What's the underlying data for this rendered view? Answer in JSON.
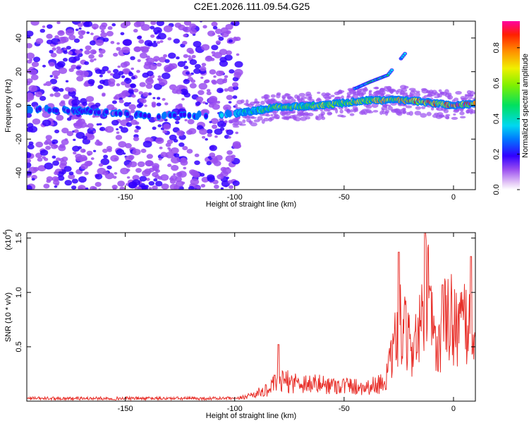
{
  "title": "C2E1.2026.111.09.54.G25",
  "chart_data": [
    {
      "type": "heatmap",
      "xlabel": "Height of straight line (km)",
      "ylabel": "Frequency (Hz)",
      "xlim": [
        -195,
        10
      ],
      "ylim": [
        -50,
        50
      ],
      "xticks": [
        -150,
        -100,
        -50,
        0
      ],
      "yticks": [
        -40,
        -20,
        0,
        20,
        40
      ],
      "colorbar": {
        "label": "Normalized spectral amplitude",
        "range": [
          0,
          0.95
        ],
        "ticks": [
          "0.0",
          "0.2",
          "0.4",
          "0.6",
          "0.8"
        ]
      },
      "ridge": {
        "x": [
          -195,
          -170,
          -140,
          -120,
          -100,
          -80,
          -60,
          -40,
          -20,
          0,
          10
        ],
        "freq": [
          -2,
          -3,
          -6,
          -6,
          -5,
          -1,
          0,
          3,
          3,
          0,
          1
        ],
        "amplitude": [
          0.25,
          0.15,
          0.2,
          0.25,
          0.35,
          0.55,
          0.6,
          0.65,
          0.75,
          0.85,
          0.8
        ]
      },
      "harmonic": {
        "x": [
          -45,
          -38,
          -30,
          -22
        ],
        "freq": [
          10,
          14,
          18,
          31
        ]
      }
    },
    {
      "type": "line",
      "xlabel": "Height of straight line (km)",
      "ylabel": "SNR (10 * v/v)",
      "scale_label": "(x10",
      "scale_exp": "4",
      "xlim": [
        -195,
        10
      ],
      "ylim": [
        0,
        1.55
      ],
      "xticks": [
        -150,
        -100,
        -50,
        0
      ],
      "yticks": [
        "0.5",
        "1.0",
        "1.5"
      ],
      "series": [
        {
          "color": "#e8302a",
          "envelope": {
            "x": [
              -195,
              -100,
              -95,
              -85,
              -80,
              -70,
              -60,
              -50,
              -40,
              -32,
              -28,
              -25,
              -20,
              -15,
              -12,
              -8,
              -5,
              0,
              5,
              10
            ],
            "y": [
              0.02,
              0.02,
              0.05,
              0.12,
              0.22,
              0.2,
              0.18,
              0.17,
              0.15,
              0.2,
              0.45,
              0.85,
              0.6,
              0.75,
              1.2,
              0.5,
              0.85,
              0.9,
              0.8,
              0.85
            ]
          },
          "peaks": [
            [
              -80,
              0.52
            ],
            [
              -25,
              1.37
            ],
            [
              -13,
              1.55
            ],
            [
              -5,
              1.07
            ],
            [
              8,
              1.33
            ]
          ]
        }
      ]
    }
  ]
}
